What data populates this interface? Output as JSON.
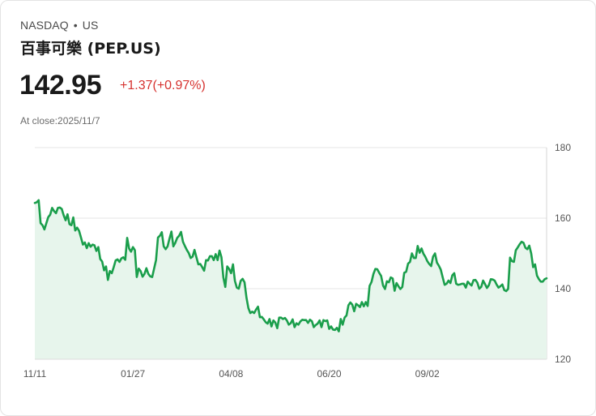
{
  "header": {
    "exchange": "NASDAQ",
    "separator": "•",
    "region": "US",
    "title": "百事可樂 (PEP.US)",
    "price": "142.95",
    "change": "+1.37(+0.97%)",
    "close_label": "At close:2025/11/7"
  },
  "colors": {
    "line": "#1a9e4b",
    "fill": "#e7f5ec",
    "negative": "#d6322f",
    "grid": "#e6e6e6"
  },
  "chart_data": {
    "type": "area",
    "title": "",
    "xlabel": "",
    "ylabel": "",
    "ylim": [
      120,
      180
    ],
    "yticks": [
      180,
      160,
      140,
      120
    ],
    "ytick_labels": [
      "180",
      "160",
      "140",
      "120"
    ],
    "xtick_labels": [
      "11/11",
      "01/27",
      "04/08",
      "06/20",
      "09/02"
    ],
    "xtick_indices": [
      0,
      51,
      102,
      153,
      204
    ],
    "y_axis_side": "right",
    "grid": true,
    "values": [
      164.3,
      164.5,
      165.1,
      158.6,
      158.0,
      156.8,
      158.6,
      160.3,
      161.0,
      162.9,
      162.0,
      161.4,
      162.9,
      163.0,
      162.6,
      160.8,
      159.4,
      161.1,
      158.3,
      158.0,
      160.2,
      156.5,
      157.3,
      156.4,
      154.5,
      152.5,
      153.1,
      151.5,
      152.9,
      151.9,
      152.5,
      152.3,
      150.7,
      151.8,
      148.4,
      147.7,
      145.2,
      146.3,
      142.5,
      145.0,
      144.4,
      146.1,
      148.0,
      148.3,
      147.6,
      148.6,
      148.9,
      148.2,
      154.4,
      151.4,
      150.5,
      151.8,
      150.9,
      143.3,
      145.7,
      145.0,
      143.4,
      144.2,
      145.8,
      144.2,
      143.5,
      143.3,
      145.7,
      148.1,
      154.5,
      155.0,
      156.0,
      152.0,
      151.2,
      152.0,
      154.2,
      156.2,
      152.0,
      153.0,
      154.4,
      155.0,
      156.1,
      153.3,
      152.1,
      151.0,
      150.1,
      148.7,
      149.1,
      151.0,
      148.9,
      146.9,
      147.0,
      146.1,
      145.1,
      148.1,
      148.0,
      149.2,
      149.2,
      148.1,
      149.8,
      148.1,
      150.8,
      148.9,
      143.2,
      140.5,
      146.3,
      145.6,
      144.4,
      146.9,
      142.2,
      140.3,
      140.0,
      142.2,
      142.8,
      141.8,
      137.5,
      134.5,
      133.1,
      133.5,
      133.1,
      134.1,
      134.9,
      131.9,
      132.0,
      131.3,
      130.5,
      130.1,
      131.4,
      129.3,
      131.0,
      130.4,
      128.8,
      131.8,
      131.8,
      131.4,
      131.7,
      131.0,
      129.8,
      130.2,
      131.3,
      129.1,
      130.2,
      129.8,
      130.7,
      131.2,
      131.1,
      131.1,
      130.3,
      131.2,
      130.8,
      129.1,
      129.7,
      130.1,
      131.0,
      129.1,
      131.1,
      130.8,
      131.0,
      128.6,
      129.3,
      128.4,
      128.3,
      128.9,
      127.9,
      131.4,
      129.8,
      131.8,
      132.4,
      135.3,
      136.1,
      135.5,
      133.6,
      135.7,
      135.3,
      134.8,
      136.2,
      135.0,
      136.2,
      135.1,
      140.8,
      141.9,
      144.2,
      145.6,
      145.5,
      144.5,
      143.6,
      140.9,
      139.9,
      142.1,
      141.8,
      143.2,
      142.9,
      139.4,
      141.6,
      140.7,
      139.9,
      140.5,
      144.5,
      144.8,
      147.1,
      147.6,
      150.0,
      148.7,
      148.7,
      152.1,
      150.2,
      151.4,
      149.9,
      149.0,
      147.8,
      147.0,
      146.4,
      149.1,
      150.0,
      147.4,
      146.5,
      145.4,
      143.2,
      141.1,
      141.4,
      142.3,
      141.6,
      143.8,
      144.4,
      141.4,
      141.1,
      141.2,
      141.4,
      141.4,
      140.3,
      142.0,
      141.4,
      140.9,
      142.4,
      142.5,
      141.7,
      140.0,
      140.5,
      142.3,
      141.3,
      140.2,
      141.0,
      142.7,
      142.6,
      142.3,
      141.2,
      140.3,
      140.7,
      141.2,
      139.6,
      139.3,
      139.9,
      148.8,
      147.8,
      147.6,
      150.9,
      151.7,
      152.6,
      153.3,
      153.0,
      151.6,
      151.2,
      152.2,
      150.0,
      146.1,
      146.9,
      143.7,
      142.7,
      142.0,
      142.0,
      142.7,
      142.95
    ]
  }
}
